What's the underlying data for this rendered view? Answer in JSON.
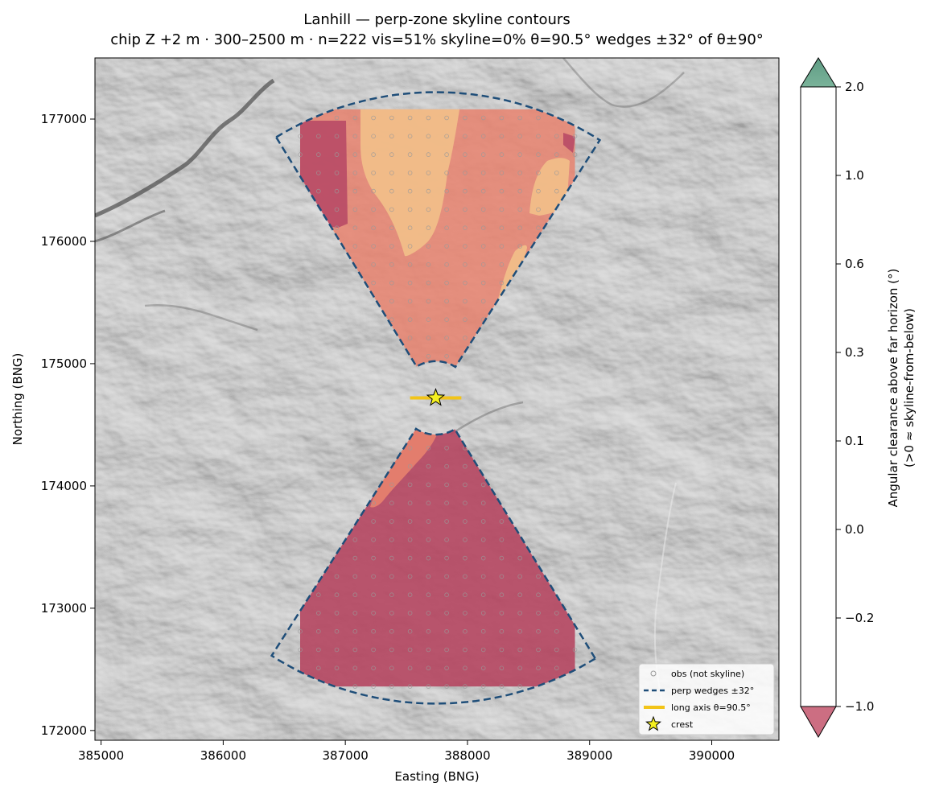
{
  "chart_data": {
    "type": "contour",
    "title": "Lanhill — perp-zone skyline contours",
    "subtitle": "chip Z +2 m · 300–2500 m · n=222  vis=51%  skyline=0%  θ=90.5°  wedges ±32° of θ±90°",
    "xlabel": "Easting (BNG)",
    "ylabel": "Northing (BNG)",
    "xlim": [
      384950,
      390550
    ],
    "ylim": [
      171920,
      177500
    ],
    "xticks": [
      "385000",
      "386000",
      "387000",
      "388000",
      "389000",
      "390000"
    ],
    "yticks": [
      "172000",
      "173000",
      "174000",
      "175000",
      "176000",
      "177000"
    ],
    "crest": {
      "x": 387740,
      "y": 174720
    },
    "long_axis": {
      "x0": 387530,
      "x1": 387950,
      "y": 174720
    },
    "wedges": {
      "inner_radius": 300,
      "outer_radius": 2500,
      "half_angle_deg": 32,
      "north_center_deg": 0.5,
      "south_center_deg": 180.5
    },
    "colorbar": {
      "label_line1": "Angular clearance above far horizon (°)",
      "label_line2": "(>0 ≈ skyline-from-below)",
      "levels": [
        -1.0,
        -0.2,
        0.0,
        0.1,
        0.3,
        0.6,
        1.0,
        2.0
      ],
      "tick_labels": [
        "−1.0",
        "−0.2",
        "0.0",
        "0.1",
        "0.3",
        "0.6",
        "1.0",
        "2.0"
      ],
      "colors": [
        "#ee9585",
        "#fad0a1",
        "#fde5b7",
        "#fef0c4",
        "#fefcd9",
        "#e6f5c2",
        "#9ad4a7"
      ],
      "under_color": "#cc6e82",
      "over_color": "#6aa98e"
    },
    "legend": [
      {
        "label": "obs (not skyline)",
        "marker": "circle",
        "color": "#999999"
      },
      {
        "label": "perp wedges ±32°",
        "marker": "dashed-line",
        "color": "#1f4e79"
      },
      {
        "label": "long axis θ=90.5°",
        "marker": "line",
        "color": "#f2c418"
      },
      {
        "label": "crest",
        "marker": "star",
        "color": "#f5f020"
      }
    ],
    "regions": [
      {
        "name": "north-wedge-base",
        "value_band": "-1.0 to -0.2",
        "color": "#e8826e"
      },
      {
        "name": "north-wedge-west-strip",
        "value_band": "< -1.0",
        "color": "#b84a66"
      },
      {
        "name": "north-wedge-central-tongue",
        "value_band": "-0.2 to 0.0",
        "color": "#f2c08a"
      },
      {
        "name": "north-wedge-east-patch",
        "value_band": "-0.2 to 0.0",
        "color": "#f2c08a"
      },
      {
        "name": "south-wedge-main",
        "value_band": "< -1.0",
        "color": "#b54660"
      },
      {
        "name": "south-wedge-north-tip",
        "value_band": "-1.0 to -0.2",
        "color": "#e8826e"
      }
    ]
  }
}
